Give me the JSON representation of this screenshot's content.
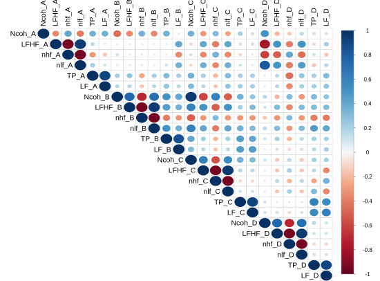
{
  "chart_data": {
    "type": "heatmap",
    "subtype": "upper-triangle correlation circles",
    "variables": [
      "Ncoh_A",
      "LFHF_A",
      "nhf_A",
      "nlf_A",
      "TP_A",
      "LF_A",
      "Ncoh_B",
      "LFHF_B",
      "nhf_B",
      "nlf_B",
      "TP_B",
      "LF_B",
      "Ncoh_C",
      "LFHF_C",
      "nhf_C",
      "nlf_C",
      "TP_C",
      "LF_C",
      "Ncoh_D",
      "LFHF_D",
      "nhf_D",
      "nlf_D",
      "TP_D",
      "LF_D"
    ],
    "value_range": [
      -1,
      1
    ],
    "colorbar": {
      "ticks": [
        1,
        0.8,
        0.6,
        0.4,
        0.2,
        0,
        -0.2,
        -0.4,
        -0.6,
        -0.8,
        -1
      ],
      "tick_labels": [
        "1",
        "0.8",
        "0.6",
        "0.4",
        "0.2",
        "0",
        "-0.2",
        "-0.4",
        "-0.6",
        "-0.8",
        "-1"
      ],
      "high_color": "#053061",
      "mid_color": "#f7f7f7",
      "low_color": "#67001f"
    },
    "grid": true,
    "legend_position": "right",
    "matrix_upper": [
      [
        1,
        -0.35,
        0.4,
        -0.4,
        0.35,
        0.35,
        -0.45,
        -0.35,
        0.35,
        -0.35,
        0.35,
        0.05,
        0.35,
        -0.3,
        0.3,
        -0.25,
        0.2,
        0.1,
        0.5,
        -0.2,
        -0.15,
        0.15,
        0.1,
        0.1
      ],
      [
        1,
        -0.95,
        0.95,
        0.15,
        0.05,
        0.05,
        0.05,
        -0.05,
        0.05,
        0.05,
        0.4,
        -0.1,
        0.4,
        -0.4,
        0.4,
        0.1,
        0.1,
        -0.8,
        0.5,
        -0.4,
        0.5,
        -0.1,
        0.2
      ],
      [
        1,
        -0.95,
        -0.3,
        -0.15,
        0.1,
        -0.05,
        0.05,
        -0.05,
        -0.05,
        -0.35,
        0.1,
        -0.35,
        0.35,
        -0.35,
        -0.1,
        -0.05,
        -0.6,
        -0.5,
        0.4,
        -0.45,
        0.1,
        -0.15
      ],
      [
        1,
        0.2,
        0.1,
        -0.05,
        0.05,
        -0.05,
        0.05,
        0.1,
        0.35,
        -0.1,
        0.35,
        -0.35,
        0.35,
        0.1,
        0.05,
        0.8,
        0.5,
        -0.4,
        0.45,
        -0.15,
        0.15
      ],
      [
        1,
        0.9,
        0.2,
        0.25,
        -0.25,
        0.2,
        0.3,
        0.2,
        0.35,
        0.2,
        -0.2,
        0.3,
        0.2,
        0.2,
        0.05,
        0.15,
        -0.45,
        0.25,
        0.2,
        0.3
      ],
      [
        1,
        0.15,
        0.15,
        -0.15,
        0.15,
        0.25,
        0.15,
        0.3,
        0.15,
        -0.15,
        0.25,
        0.2,
        0.2,
        0.05,
        0.15,
        -0.35,
        0.2,
        0.2,
        0.25
      ],
      [
        1,
        0.75,
        -0.7,
        0.7,
        0.5,
        0.4,
        0.95,
        -0.6,
        0.6,
        -0.5,
        0.35,
        0.25,
        0.15,
        -0.2,
        0.3,
        -0.3,
        0.3,
        0.25
      ],
      [
        1,
        -0.95,
        0.95,
        0.45,
        0.35,
        0.6,
        0.5,
        -0.5,
        0.5,
        0.2,
        0.3,
        0.1,
        0.3,
        -0.35,
        0.3,
        0.3,
        0.3
      ],
      [
        1,
        -0.95,
        -0.4,
        -0.3,
        -0.5,
        -0.3,
        0.3,
        -0.3,
        -0.3,
        -0.3,
        -0.15,
        -0.3,
        0.3,
        -0.3,
        -0.4,
        -0.4
      ],
      [
        1,
        0.5,
        0.35,
        0.6,
        0.4,
        -0.4,
        0.4,
        0.35,
        0.3,
        0.15,
        0.3,
        -0.3,
        0.3,
        0.45,
        0.4
      ],
      [
        1,
        0.85,
        0.4,
        0.2,
        -0.2,
        0.2,
        0.45,
        0.4,
        0.1,
        0.2,
        -0.2,
        0.15,
        0.2,
        0.2
      ],
      [
        1,
        0.3,
        0.15,
        -0.15,
        0.15,
        0.45,
        0.45,
        0.05,
        0.1,
        -0.1,
        0.1,
        0.15,
        0.2
      ],
      [
        1,
        0.6,
        -0.55,
        0.55,
        0.35,
        0.3,
        0.1,
        -0.15,
        0.15,
        -0.15,
        0.2,
        0.2
      ],
      [
        1,
        -0.95,
        0.95,
        0.15,
        0.15,
        0.05,
        -0.15,
        0.2,
        -0.15,
        0.15,
        -0.35
      ],
      [
        1,
        -0.95,
        -0.1,
        -0.1,
        -0.05,
        0.15,
        -0.2,
        0.15,
        -0.25,
        0.35
      ],
      [
        1,
        0.1,
        0.1,
        0.05,
        -0.15,
        0.2,
        -0.15,
        0.3,
        -0.35
      ],
      [
        1,
        0.9,
        0.1,
        0.05,
        -0.05,
        0.05,
        0.6,
        0.55
      ],
      [
        1,
        0.1,
        0.1,
        -0.1,
        0.1,
        0.55,
        0.6
      ],
      [
        1,
        0.75,
        -0.7,
        0.7,
        0.15,
        0.1
      ],
      [
        1,
        -0.95,
        0.95,
        0.1,
        0.1
      ],
      [
        1,
        -0.95,
        -0.1,
        -0.1
      ],
      [
        1,
        0.1,
        0.1
      ],
      [
        1,
        0.9
      ],
      [
        1
      ]
    ]
  }
}
